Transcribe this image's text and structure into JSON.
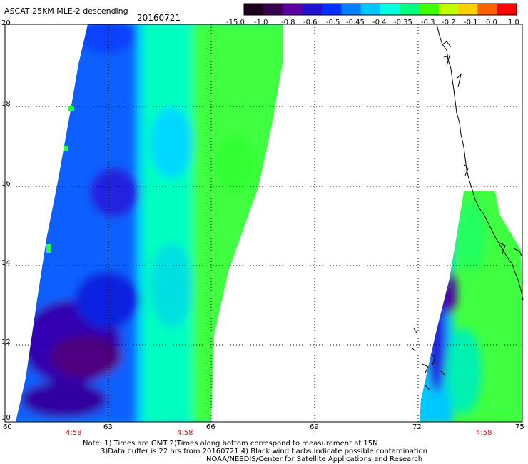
{
  "header": {
    "title": "ASCAT 25KM MLE-2 descending",
    "date": "20160721"
  },
  "colorbar": {
    "labels": [
      "-15.0",
      "-1.0",
      "-0.8",
      "-0.6",
      "-0.5",
      "-0.45",
      "-0.4",
      "-0.35",
      "-0.3",
      "-0.2",
      "-0.1",
      "0.0",
      "1.0"
    ],
    "colors": [
      "#1a001a",
      "#3a0050",
      "#5a00a0",
      "#2010d0",
      "#0030ff",
      "#0080ff",
      "#00c8ff",
      "#00ffe0",
      "#00ff80",
      "#40ff00",
      "#c0ff00",
      "#ffd000",
      "#ff6000",
      "#ff0000"
    ]
  },
  "map": {
    "y_ticks": [
      "20",
      "18",
      "16",
      "14",
      "12",
      "10"
    ],
    "x_ticks": [
      "60",
      "63",
      "66",
      "69",
      "72",
      "75"
    ],
    "time_labels": [
      "4:58",
      "4:58",
      "4:58"
    ]
  },
  "notes": {
    "line1": "Note: 1) Times are GMT 2)Times along bottom correspond to measurement at 15N",
    "line2": "3)Data buffer is 22 hrs from 20160721 4) Black wind barbs indicate possible contamination",
    "line3": "NOAA/NESDIS/Center for Satellite Applications and Research"
  }
}
